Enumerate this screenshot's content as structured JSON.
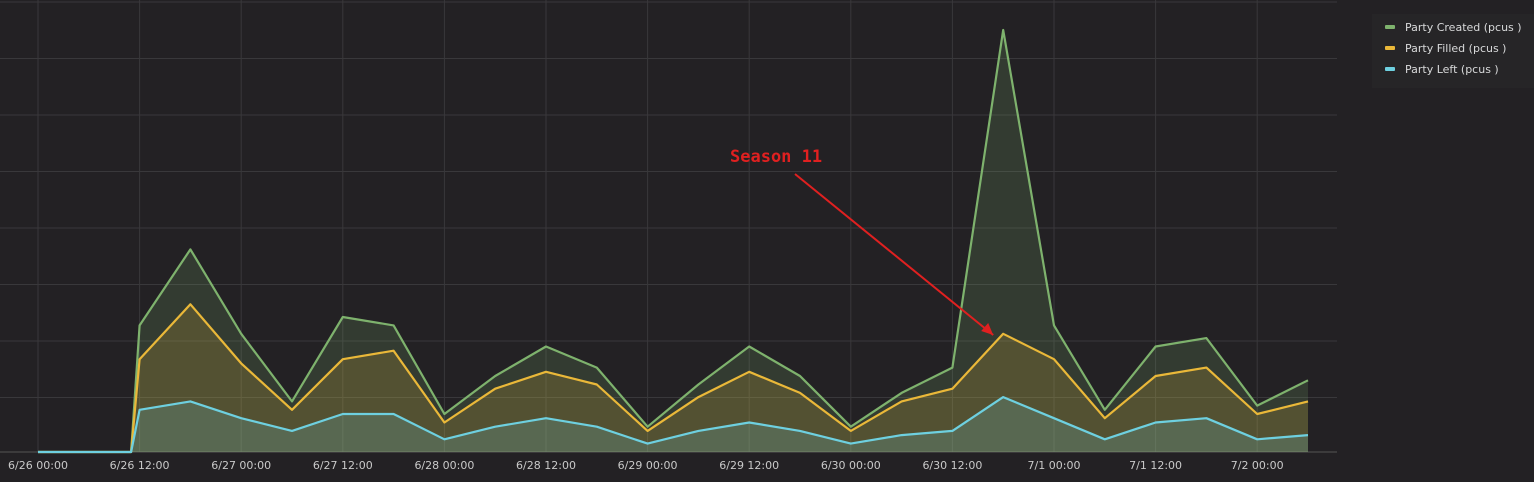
{
  "chart_data": {
    "type": "area",
    "xlabel": "",
    "ylabel": "",
    "x_ticks": [
      "6/26 00:00",
      "6/26 12:00",
      "6/27 00:00",
      "6/27 12:00",
      "6/28 00:00",
      "6/28 12:00",
      "6/29 00:00",
      "6/29 12:00",
      "6/30 00:00",
      "6/30 12:00",
      "7/1 00:00",
      "7/1 12:00",
      "7/2 00:00"
    ],
    "y_ticks_shown": false,
    "ylim": [
      0,
      100
    ],
    "grid": true,
    "legend_position": "top-right",
    "series": [
      {
        "name": "Party Created (pcus )",
        "color": "#7eb26d"
      },
      {
        "name": "Party Filled (pcus )",
        "color": "#eab839"
      },
      {
        "name": "Party Left (pcus )",
        "color": "#6ed0e0"
      }
    ],
    "x": [
      "6/26 00:00",
      "6/26 12:00",
      "6/26 18:00",
      "6/27 00:00",
      "6/27 06:00",
      "6/27 12:00",
      "6/27 18:00",
      "6/28 00:00",
      "6/28 06:00",
      "6/28 12:00",
      "6/28 18:00",
      "6/29 00:00",
      "6/29 06:00",
      "6/29 12:00",
      "6/29 18:00",
      "6/30 00:00",
      "6/30 06:00",
      "6/30 12:00",
      "6/30 18:00",
      "7/1 00:00",
      "7/1 06:00",
      "7/1 12:00",
      "7/1 18:00",
      "7/2 00:00",
      "7/2 06:00"
    ],
    "values": {
      "Party Created (pcus )": [
        0,
        30,
        48,
        28,
        12,
        32,
        30,
        9,
        18,
        25,
        20,
        6,
        16,
        25,
        18,
        6,
        14,
        20,
        56,
        30,
        10,
        25,
        27,
        11,
        17
      ],
      "Party Filled (pcus )": [
        0,
        22,
        35,
        21,
        10,
        22,
        24,
        7,
        15,
        19,
        16,
        5,
        13,
        19,
        14,
        5,
        12,
        15,
        28,
        22,
        8,
        18,
        20,
        9,
        12
      ],
      "Party Left (pcus )": [
        0,
        10,
        12,
        8,
        5,
        9,
        9,
        3,
        6,
        8,
        6,
        2,
        5,
        7,
        5,
        2,
        4,
        5,
        13,
        8,
        3,
        7,
        8,
        3,
        4
      ]
    },
    "annotations": [
      {
        "text": "Season 11",
        "target_x": "6/30 18:00",
        "color": "#e02020"
      }
    ]
  }
}
